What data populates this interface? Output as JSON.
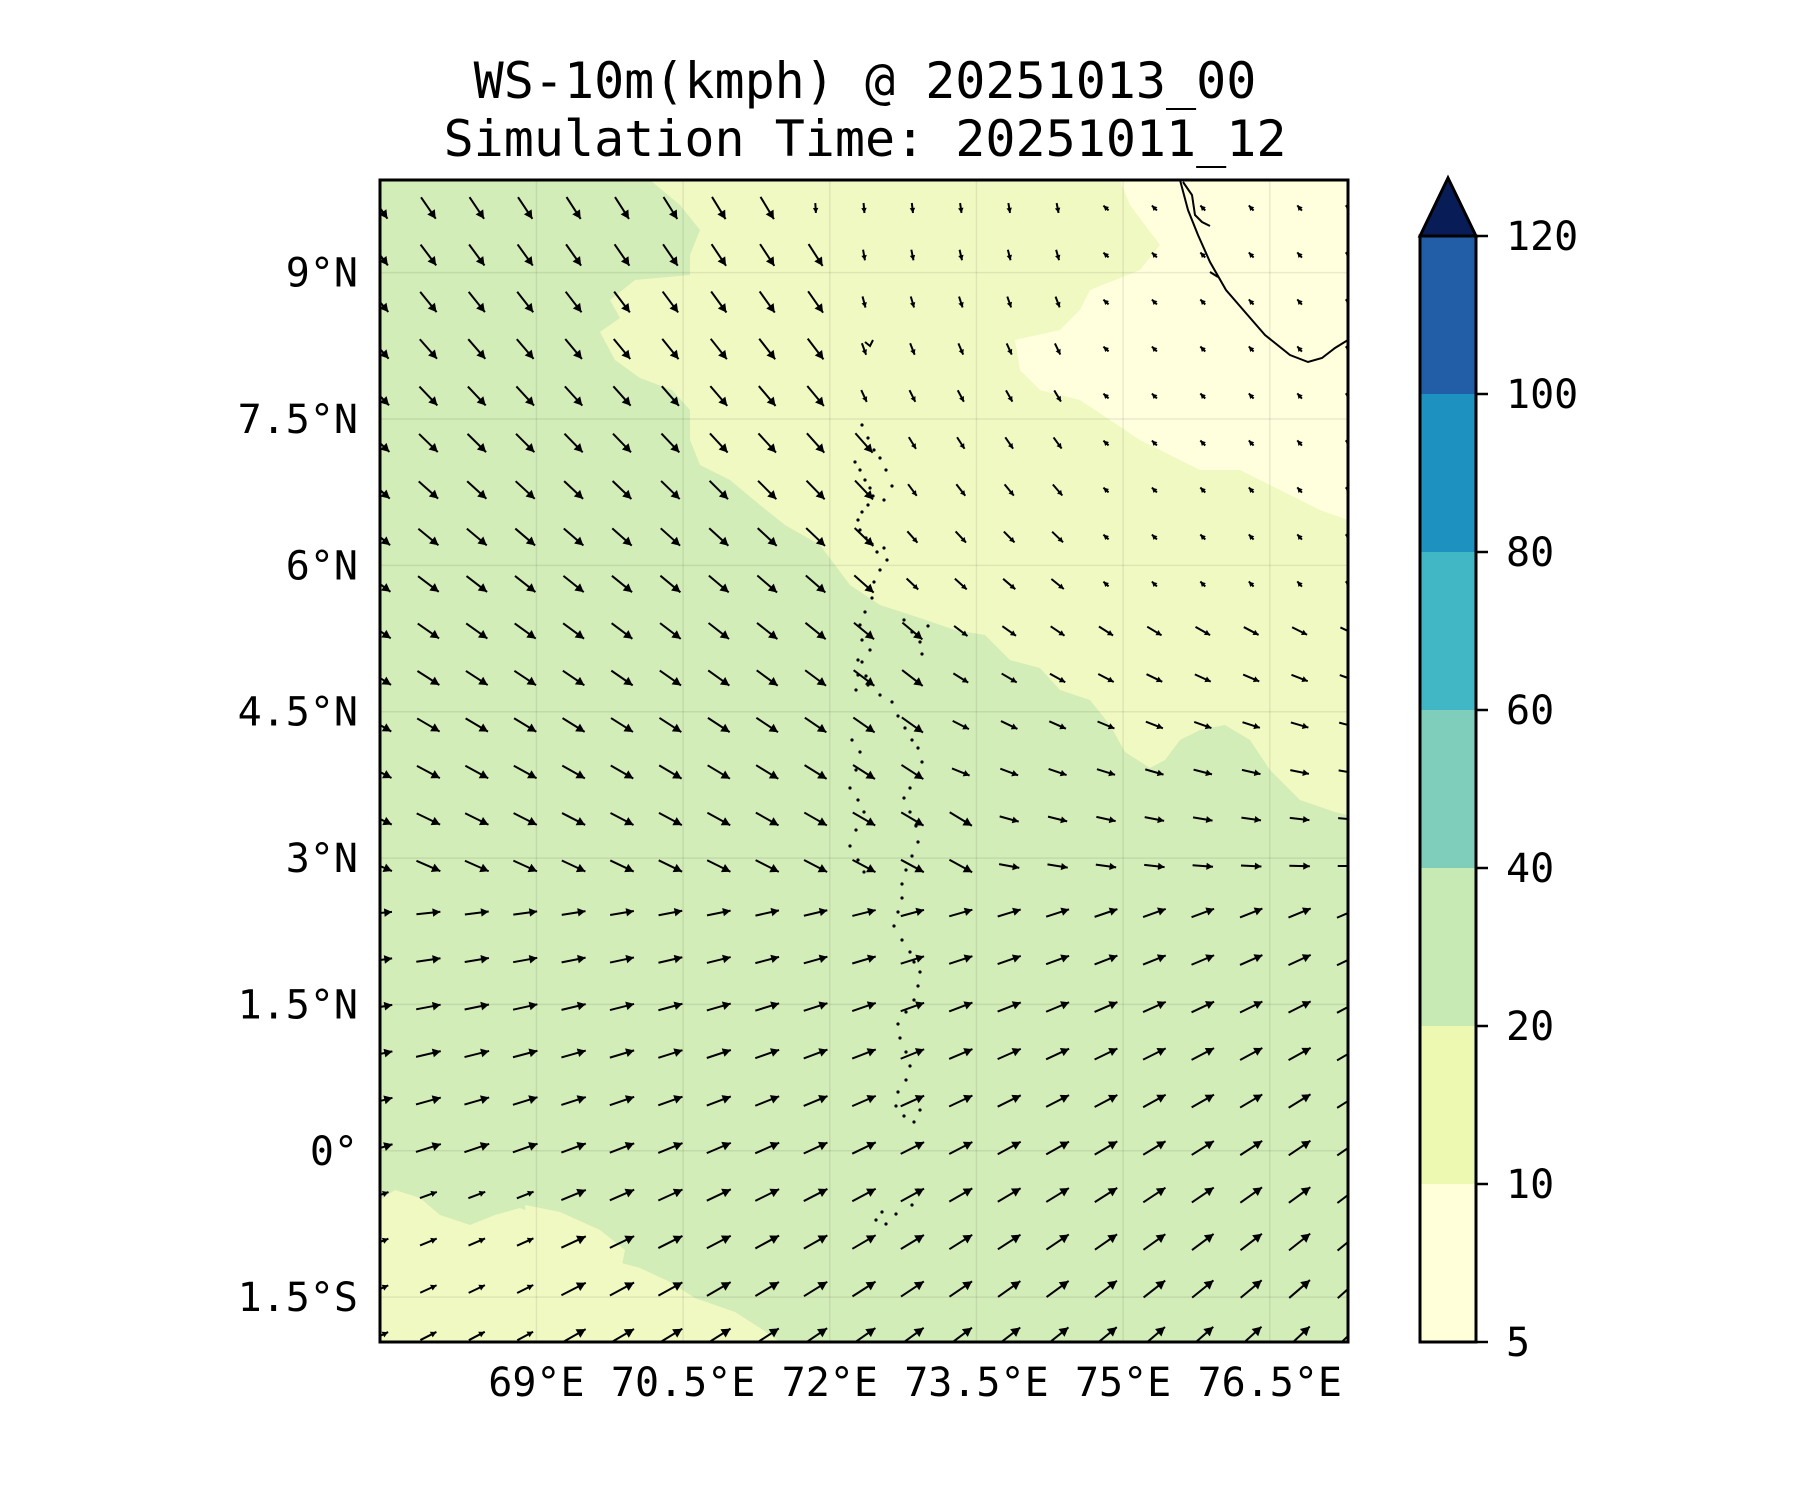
{
  "title": {
    "line1": "WS-10m(kmph) @ 20251013_00",
    "line2": "Simulation Time: 20251011_12"
  },
  "map": {
    "lon_range": [
      67.4,
      77.3
    ],
    "lat_range": [
      -1.96,
      9.95
    ],
    "lon_tick_values": [
      69,
      70.5,
      72,
      73.5,
      75,
      76.5
    ],
    "lon_tick_labels": [
      "69°E",
      "70.5°E",
      "72°E",
      "73.5°E",
      "75°E",
      "76.5°E"
    ],
    "lat_tick_values": [
      9,
      7.5,
      6,
      4.5,
      3,
      1.5,
      0,
      -1.5
    ],
    "lat_tick_labels": [
      "9°N",
      "7.5°N",
      "6°N",
      "4.5°N",
      "3°N",
      "1.5°N",
      "0°",
      "1.5°S"
    ],
    "gridlines": true
  },
  "colorbar": {
    "levels": [
      5,
      10,
      20,
      40,
      60,
      80,
      100,
      120
    ],
    "tick_labels": [
      "5",
      "10",
      "20",
      "40",
      "60",
      "80",
      "100",
      "120"
    ],
    "colors": [
      "#ffffd9",
      "#edf8b1",
      "#c7e9b4",
      "#7fcdbb",
      "#41b6c4",
      "#1d91c0",
      "#225ea8",
      "#081d58"
    ],
    "extend": "max",
    "extend_color": "#081d58"
  },
  "field_colors": {
    "calm": "#ffffd9",
    "light": "#edf8b1",
    "moderate": "#c7e9b4"
  }
}
